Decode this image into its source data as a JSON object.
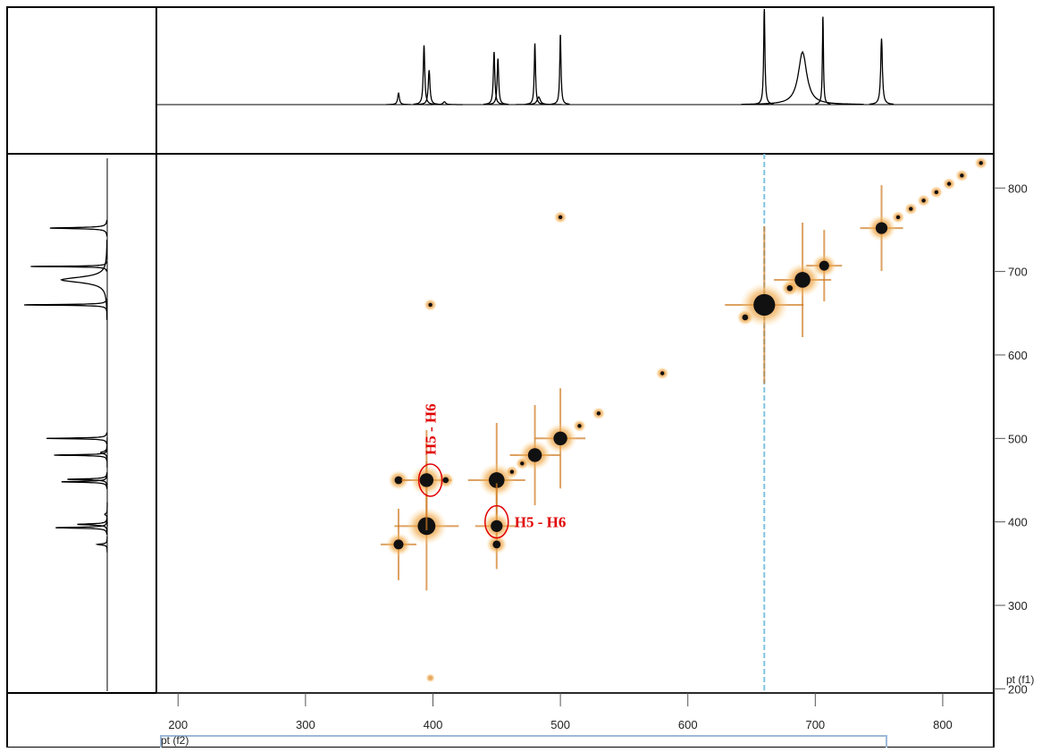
{
  "chart_data": {
    "type": "contour2d",
    "xlabel": "pt (f2)",
    "ylabel": "pt (f1)",
    "xlim": [
      183,
      840
    ],
    "ylim": [
      195,
      841
    ],
    "xticks": [
      200,
      300,
      400,
      500,
      600,
      700,
      800
    ],
    "yticks": [
      200,
      300,
      400,
      500,
      600,
      700,
      800
    ],
    "x": [
      373,
      395,
      450,
      480,
      500,
      660,
      690,
      707,
      752,
      645,
      680,
      470,
      515,
      530,
      765,
      775,
      785,
      795,
      805,
      815,
      830,
      373,
      395,
      410,
      450,
      450,
      398,
      580,
      500,
      398,
      462
    ],
    "y": [
      373,
      395,
      450,
      480,
      500,
      660,
      690,
      707,
      752,
      645,
      680,
      470,
      515,
      530,
      765,
      775,
      785,
      795,
      805,
      815,
      830,
      450,
      450,
      450,
      395,
      373,
      660,
      578,
      765,
      213,
      460
    ],
    "sizes": [
      5,
      9,
      8,
      7,
      7,
      11,
      8,
      5,
      6,
      3,
      3,
      2,
      2,
      2,
      2,
      2,
      2,
      2,
      2,
      2,
      2,
      4,
      7,
      3,
      6,
      4,
      2,
      2,
      2,
      1,
      2
    ],
    "projection": {
      "positions": [
        373,
        393,
        397,
        409,
        448,
        451,
        480,
        483,
        500,
        660,
        690,
        706,
        752
      ],
      "intensities": [
        12,
        62,
        36,
        3,
        55,
        48,
        64,
        8,
        73,
        100,
        55,
        92,
        69
      ],
      "widths": [
        0.8,
        0.7,
        0.8,
        1.2,
        0.7,
        0.7,
        0.6,
        1.5,
        0.6,
        0.6,
        4,
        0.5,
        0.8
      ]
    },
    "annotations": [
      {
        "text": "H5 - H6",
        "x": 398,
        "y": 450,
        "rotate": true
      },
      {
        "text": "H5 - H6",
        "x": 450,
        "y": 400,
        "rotate": false
      }
    ],
    "artifact_x": 660
  }
}
